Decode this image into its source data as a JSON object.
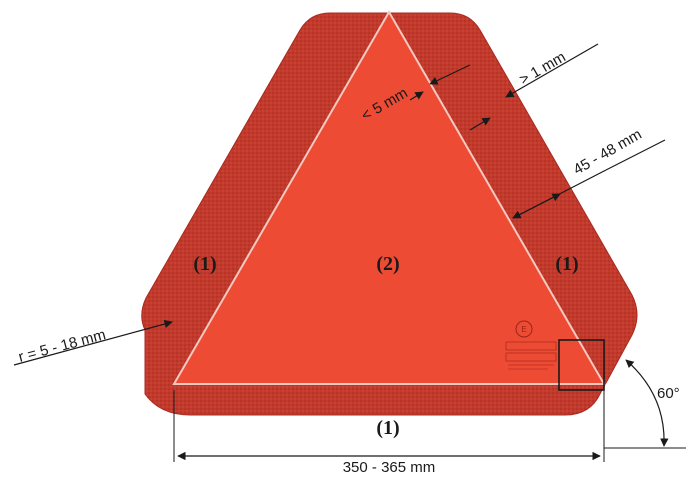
{
  "diagram": {
    "regions": {
      "outer_left": "(1)",
      "outer_right": "(1)",
      "outer_bottom": "(1)",
      "inner": "(2)"
    },
    "dimensions": {
      "border_gap": "> 1 mm",
      "inner_edge": "< 5 mm",
      "border_width": "45 - 48 mm",
      "corner_radius": "r = 5 - 18 mm",
      "base_width": "350 - 365 mm",
      "angle": "60°"
    },
    "colors": {
      "outer": "#c0392b",
      "inner": "#ee4b35",
      "edge": "#f4c9c0",
      "line": "#1a1a1a"
    }
  }
}
